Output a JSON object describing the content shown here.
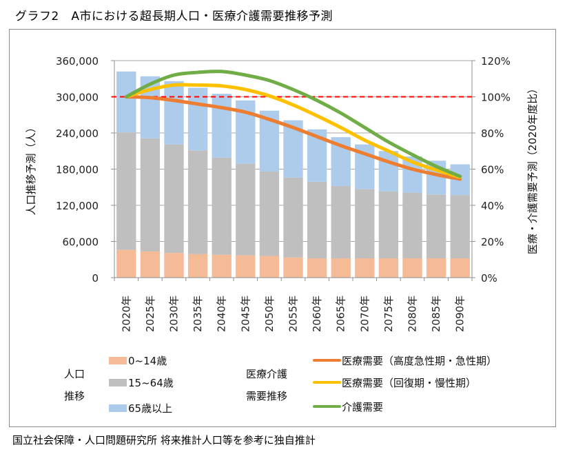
{
  "title": "グラフ2　A市における超長期人口・医療介護需要推移予測",
  "source": "国立社会保障・人口問題研究所 将来推計人口等を参考に独自推計",
  "chart_data": {
    "type": "bar",
    "title": "グラフ2　A市における超長期人口・医療介護需要推移予測",
    "categories": [
      "2020年",
      "2025年",
      "2030年",
      "2035年",
      "2040年",
      "2045年",
      "2050年",
      "2055年",
      "2060年",
      "2065年",
      "2070年",
      "2075年",
      "2080年",
      "2085年",
      "2090年"
    ],
    "ylabel": "人口推移予測（人）",
    "y2label": "医療・介護需要予測（2020年度比）",
    "ylim": [
      0,
      360000
    ],
    "y2lim": [
      0,
      120
    ],
    "yticks": [
      "0",
      "60,000",
      "120,000",
      "180,000",
      "240,000",
      "300,000",
      "360,000"
    ],
    "y2ticks": [
      "0%",
      "20%",
      "40%",
      "60%",
      "80%",
      "100%",
      "120%"
    ],
    "grid": true,
    "reference_line": {
      "value": 100,
      "axis": "y2",
      "style": "dashed",
      "color": "#ff0000"
    },
    "bar_series": [
      {
        "name": "0~14歳",
        "color": "#f5bb97",
        "values": [
          46000,
          43500,
          41000,
          39000,
          38000,
          37000,
          36000,
          33500,
          32000,
          32000,
          32000,
          32000,
          32000,
          32000,
          32000
        ]
      },
      {
        "name": "15~64歳",
        "color": "#bfbfbf",
        "values": [
          195000,
          187500,
          180000,
          172000,
          161000,
          152000,
          140000,
          132500,
          127000,
          120000,
          115000,
          111000,
          109000,
          106000,
          105000
        ]
      },
      {
        "name": "65歳以上",
        "color": "#adcbea",
        "values": [
          101000,
          103000,
          105000,
          104000,
          106000,
          105000,
          101000,
          95000,
          87000,
          81000,
          74000,
          67000,
          60000,
          56000,
          51000
        ]
      }
    ],
    "line_series": [
      {
        "name": "医療需要（高度急性期・急性期）",
        "color": "#ed7d31",
        "axis": "y2",
        "values": [
          100,
          99.5,
          98,
          96,
          94,
          91.5,
          87.5,
          83,
          78,
          73,
          68.5,
          64,
          60,
          57,
          54.5
        ]
      },
      {
        "name": "医療需要（回復期・慢性期）",
        "color": "#ffc000",
        "axis": "y2",
        "values": [
          100,
          104,
          106.5,
          106.5,
          106,
          104,
          100.5,
          95.5,
          89.5,
          83,
          76,
          70,
          64,
          59.5,
          55.5
        ]
      },
      {
        "name": "介護需要",
        "color": "#70ad47",
        "axis": "y2",
        "values": [
          100,
          107,
          112,
          113.5,
          114,
          112,
          109,
          104,
          98,
          91,
          83,
          75,
          68,
          61.5,
          56
        ]
      }
    ],
    "legend": {
      "placement": "bottom",
      "population_group_label": [
        "人口",
        "推移"
      ],
      "demand_group_label": [
        "医療介護",
        "需要推移"
      ]
    }
  }
}
